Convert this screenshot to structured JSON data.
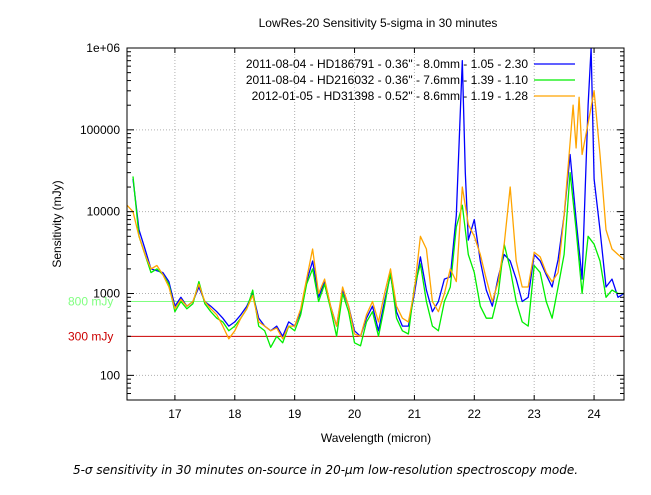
{
  "caption": "5-σ sensitivity in 30 minutes on-source in 20-μm low-resolution spectroscopy mode.",
  "chart_data": {
    "type": "line",
    "title": "LowRes-20 Sensitivity 5-sigma in 30 minutes",
    "xlabel": "Wavelength (micron)",
    "ylabel": "Sensitivity (mJy)",
    "xlim": [
      16.2,
      24.5
    ],
    "ylim": [
      50,
      1000000
    ],
    "y_scale": "log",
    "x_ticks": [
      17,
      18,
      19,
      20,
      21,
      22,
      23,
      24
    ],
    "x_tick_labels": [
      "17",
      "18",
      "19",
      "20",
      "21",
      "22",
      "23",
      "24"
    ],
    "y_ticks": [
      100,
      1000,
      10000,
      100000,
      1000000
    ],
    "y_tick_labels": [
      "100",
      "1000",
      "10000",
      "100000",
      "1e+06"
    ],
    "grid": true,
    "legend_position": "top-right",
    "reference_lines": [
      {
        "label": "800 mJy",
        "value": 800,
        "color": "#80ff80"
      },
      {
        "label": "300 mJy",
        "value": 300,
        "color": "#cc0000"
      }
    ],
    "series": [
      {
        "name": "2011-08-04 - HD186791 - 0.36\" - 8.0mm - 1.05 - 2.30",
        "color": "#0000ff",
        "x": [
          16.3,
          16.4,
          16.5,
          16.6,
          16.7,
          16.8,
          16.9,
          17.0,
          17.1,
          17.2,
          17.3,
          17.4,
          17.5,
          17.6,
          17.7,
          17.8,
          17.9,
          18.0,
          18.1,
          18.2,
          18.3,
          18.4,
          18.5,
          18.6,
          18.7,
          18.8,
          18.9,
          19.0,
          19.1,
          19.2,
          19.3,
          19.4,
          19.5,
          19.6,
          19.7,
          19.8,
          19.9,
          20.0,
          20.1,
          20.2,
          20.3,
          20.4,
          20.5,
          20.6,
          20.7,
          20.8,
          20.9,
          21.0,
          21.1,
          21.2,
          21.3,
          21.4,
          21.5,
          21.6,
          21.7,
          21.8,
          21.85,
          21.9,
          22.0,
          22.1,
          22.2,
          22.3,
          22.4,
          22.5,
          22.6,
          22.7,
          22.8,
          22.9,
          23.0,
          23.1,
          23.2,
          23.3,
          23.4,
          23.5,
          23.6,
          23.7,
          23.8,
          23.9,
          23.95,
          24.0,
          24.1,
          24.2,
          24.3,
          24.4,
          24.5
        ],
        "y": [
          25000,
          6000,
          3500,
          2000,
          1900,
          1800,
          1400,
          700,
          900,
          700,
          800,
          1200,
          800,
          700,
          600,
          500,
          400,
          450,
          550,
          700,
          1000,
          500,
          400,
          350,
          400,
          300,
          450,
          400,
          600,
          1400,
          2500,
          900,
          1400,
          700,
          400,
          1100,
          700,
          350,
          300,
          500,
          700,
          350,
          800,
          1700,
          600,
          400,
          400,
          1000,
          2800,
          1100,
          600,
          800,
          1500,
          1600,
          9000,
          700000,
          30000,
          4500,
          8000,
          2500,
          1100,
          700,
          1600,
          3000,
          2500,
          1500,
          800,
          900,
          3000,
          2500,
          1700,
          1200,
          2600,
          9000,
          50000,
          8000,
          1500,
          200000,
          1000000,
          25000,
          6000,
          1200,
          1500,
          900,
          1000
        ]
      },
      {
        "name": "2011-08-04 - HD216032 - 0.36\" - 7.6mm - 1.39 - 1.10",
        "color": "#00ee00",
        "x": [
          16.3,
          16.4,
          16.5,
          16.6,
          16.7,
          16.8,
          16.9,
          17.0,
          17.1,
          17.2,
          17.3,
          17.4,
          17.5,
          17.6,
          17.7,
          17.8,
          17.9,
          18.0,
          18.1,
          18.2,
          18.3,
          18.4,
          18.5,
          18.6,
          18.7,
          18.8,
          18.9,
          19.0,
          19.1,
          19.2,
          19.3,
          19.4,
          19.5,
          19.6,
          19.7,
          19.8,
          19.9,
          20.0,
          20.1,
          20.2,
          20.3,
          20.4,
          20.5,
          20.6,
          20.7,
          20.8,
          20.9,
          21.0,
          21.1,
          21.2,
          21.3,
          21.4,
          21.5,
          21.6,
          21.7,
          21.8,
          21.9,
          22.0,
          22.1,
          22.2,
          22.3,
          22.4,
          22.5,
          22.6,
          22.7,
          22.8,
          22.9,
          23.0,
          23.1,
          23.2,
          23.3,
          23.4,
          23.5,
          23.6,
          23.7,
          23.8,
          23.9,
          24.0,
          24.1,
          24.2,
          24.3,
          24.4,
          24.5
        ],
        "y": [
          27000,
          5000,
          3000,
          1800,
          2000,
          1700,
          1300,
          600,
          800,
          650,
          750,
          1400,
          750,
          600,
          500,
          450,
          350,
          400,
          500,
          650,
          1100,
          400,
          350,
          220,
          300,
          250,
          400,
          350,
          550,
          1300,
          2000,
          800,
          1300,
          650,
          300,
          1000,
          600,
          250,
          230,
          450,
          600,
          300,
          700,
          1800,
          500,
          350,
          320,
          1200,
          2300,
          800,
          400,
          350,
          800,
          1200,
          6500,
          12000,
          3000,
          1800,
          700,
          500,
          500,
          1000,
          4000,
          2000,
          800,
          450,
          400,
          2200,
          1800,
          800,
          500,
          1200,
          3000,
          30000,
          6000,
          1000,
          5000,
          4000,
          2500,
          900,
          1100,
          1000,
          1000
        ]
      },
      {
        "name": "2012-01-05 - HD31398  - 0.52\" - 8.6mm - 1.19 - 1.28",
        "color": "#ffa500",
        "x": [
          16.2,
          16.3,
          16.4,
          16.5,
          16.6,
          16.7,
          16.8,
          16.9,
          17.0,
          17.1,
          17.2,
          17.3,
          17.4,
          17.5,
          17.6,
          17.7,
          17.8,
          17.9,
          18.0,
          18.1,
          18.2,
          18.3,
          18.4,
          18.5,
          18.6,
          18.7,
          18.8,
          18.9,
          19.0,
          19.1,
          19.2,
          19.3,
          19.4,
          19.5,
          19.6,
          19.7,
          19.8,
          19.9,
          20.0,
          20.1,
          20.2,
          20.3,
          20.4,
          20.5,
          20.6,
          20.7,
          20.8,
          20.9,
          21.0,
          21.1,
          21.2,
          21.3,
          21.4,
          21.5,
          21.6,
          21.7,
          21.8,
          21.9,
          22.0,
          22.1,
          22.2,
          22.3,
          22.4,
          22.5,
          22.6,
          22.7,
          22.8,
          22.9,
          23.0,
          23.1,
          23.2,
          23.3,
          23.4,
          23.5,
          23.6,
          23.65,
          23.7,
          23.75,
          23.8,
          23.9,
          24.0,
          24.1,
          24.2,
          24.3,
          24.4,
          24.5
        ],
        "y": [
          12000,
          10000,
          5000,
          3000,
          2000,
          2200,
          1700,
          1200,
          650,
          850,
          700,
          800,
          1300,
          800,
          650,
          550,
          400,
          280,
          350,
          500,
          650,
          950,
          450,
          400,
          350,
          380,
          280,
          400,
          400,
          650,
          1500,
          3500,
          1000,
          1500,
          700,
          400,
          1200,
          700,
          320,
          300,
          550,
          800,
          450,
          1000,
          2000,
          700,
          500,
          450,
          1100,
          5000,
          3500,
          800,
          600,
          1000,
          2000,
          1400,
          20000,
          7000,
          5000,
          3000,
          1500,
          800,
          1400,
          4000,
          20000,
          2500,
          1200,
          1200,
          3200,
          2800,
          1800,
          1400,
          1800,
          9000,
          70000,
          200000,
          60000,
          250000,
          50000,
          120000,
          300000,
          50000,
          6000,
          3500,
          3000,
          2600
        ]
      }
    ]
  }
}
